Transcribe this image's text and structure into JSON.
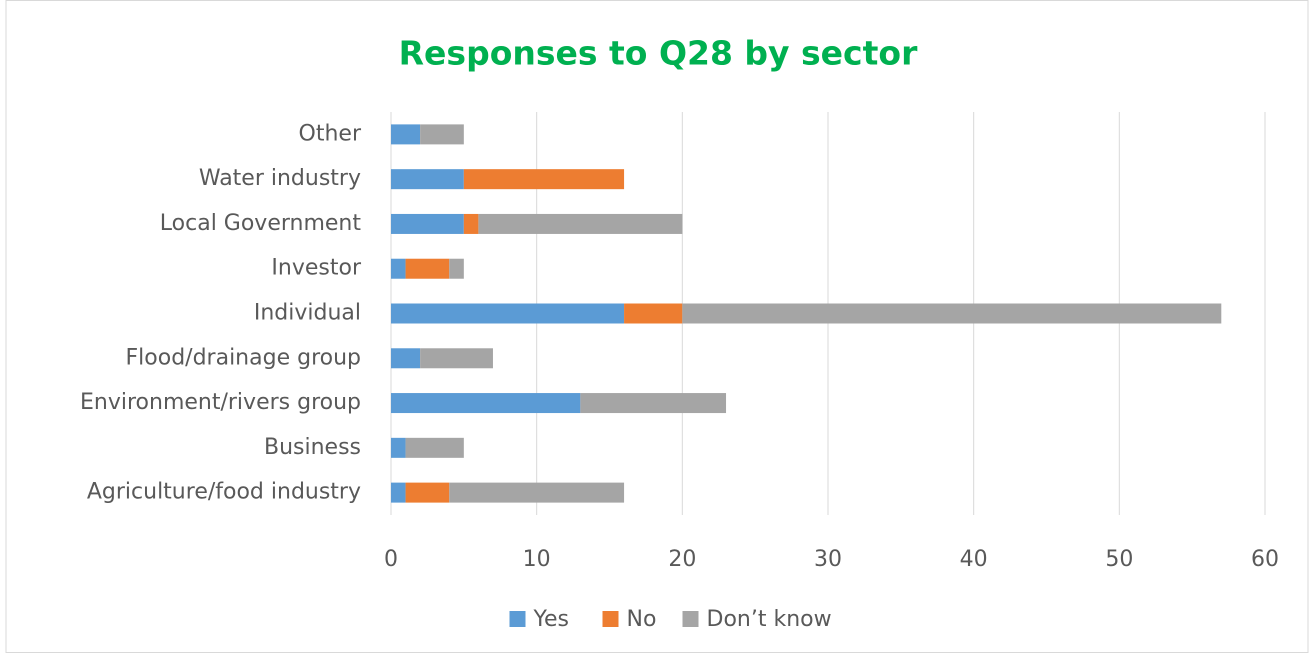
{
  "chart_data": {
    "type": "stacked-barh",
    "title": "Responses to Q28 by sector",
    "categories": [
      "Other",
      "Water industry",
      "Local Government",
      "Investor",
      "Individual",
      "Flood/drainage group",
      "Environment/rivers group",
      "Business",
      "Agriculture/food industry"
    ],
    "series": [
      {
        "name": "Yes",
        "color": "#5b9bd5",
        "values": [
          2,
          5,
          5,
          1,
          16,
          2,
          13,
          1,
          1
        ]
      },
      {
        "name": "No",
        "color": "#ed7d31",
        "values": [
          0,
          11,
          1,
          3,
          4,
          0,
          0,
          0,
          3
        ]
      },
      {
        "name": "Don’t know",
        "color": "#a5a5a5",
        "values": [
          3,
          0,
          14,
          1,
          37,
          5,
          10,
          4,
          12
        ]
      }
    ],
    "xlim": [
      0,
      60
    ],
    "xticks": [
      0,
      10,
      20,
      30,
      40,
      50,
      60
    ],
    "grid": true,
    "legend": "bottom"
  }
}
